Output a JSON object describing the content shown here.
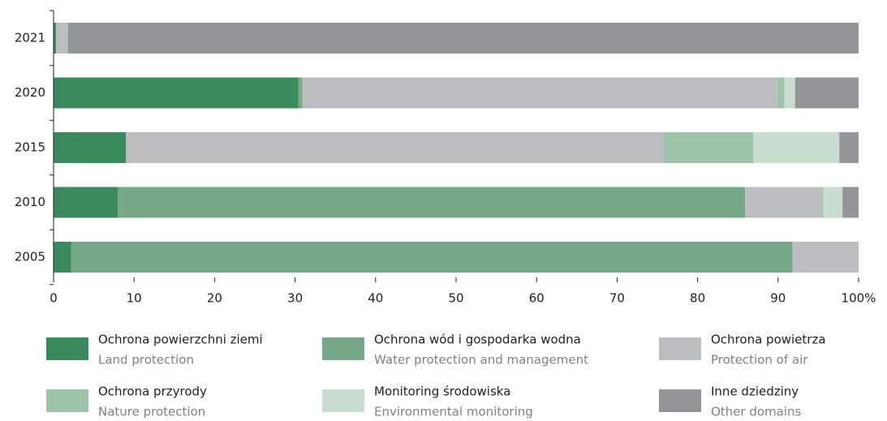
{
  "chart_data": {
    "type": "stacked_barh",
    "categories": [
      "2021",
      "2020",
      "2015",
      "2010",
      "2005"
    ],
    "series": [
      {
        "name": "Ochrona powierzchni ziemi",
        "name_en": "Land protection",
        "color": "#3a8a5e",
        "values": [
          0.3,
          30.4,
          9.0,
          8.0,
          2.2
        ]
      },
      {
        "name": "Ochrona wód i gospodarka wodna",
        "name_en": "Water protection and management",
        "color": "#76a889",
        "values": [
          0,
          0.5,
          0,
          77.9,
          89.6
        ]
      },
      {
        "name": "Ochrona powietrza",
        "name_en": "Protection of air",
        "color": "#bcbdc0",
        "values": [
          1.5,
          59.0,
          66.8,
          9.5,
          8.2
        ]
      },
      {
        "name": "Ochrona przyrody",
        "name_en": "Nature protection",
        "color": "#9dc3a8",
        "values": [
          0,
          0.9,
          11.1,
          0.2,
          0
        ]
      },
      {
        "name": "Monitoring  środowiska",
        "name_en": "Environmental monitoring",
        "color": "#c8ddd0",
        "values": [
          0,
          1.3,
          10.7,
          2.4,
          0
        ]
      },
      {
        "name": "Inne dziedziny",
        "name_en": "Other domains",
        "color": "#939598",
        "values": [
          98.2,
          7.9,
          2.4,
          2.0,
          0
        ]
      }
    ],
    "xlim": [
      0,
      100
    ],
    "xticks": [
      0,
      10,
      20,
      30,
      40,
      50,
      60,
      70,
      80,
      90,
      {
        "value": 100,
        "label": "100%"
      }
    ]
  }
}
